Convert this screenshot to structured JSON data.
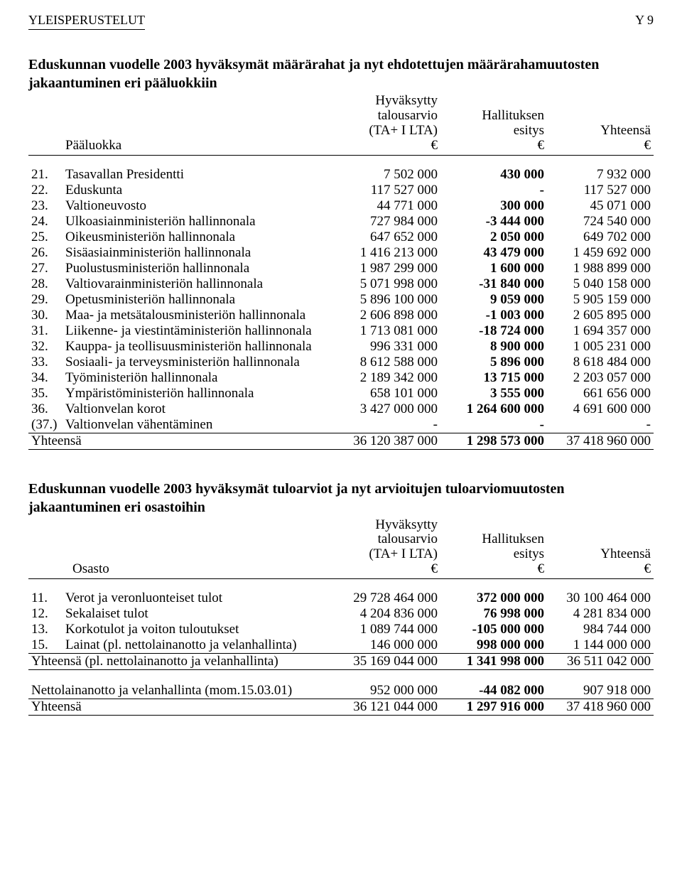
{
  "page": {
    "header_left": "YLEISPERUSTELUT",
    "header_right": "Y 9"
  },
  "table1": {
    "title": "Eduskunnan vuodelle 2003 hyväksymät määrärahat ja nyt ehdotettujen määrärahamuutosten jakaantuminen eri pääluokkiin",
    "row_label": "Pääluokka",
    "col_budget_l1": "Hyväksytty",
    "col_budget_l2": "talousarvio",
    "col_budget_l3": "(TA+ I LTA)",
    "col_budget_l4": "€",
    "col_gov_l1": "Hallituksen",
    "col_gov_l2": "esitys",
    "col_gov_l3": "€",
    "col_tot_l1": "Yhteensä",
    "col_tot_l2": "€",
    "rows": [
      {
        "no": "21.",
        "name": "Tasavallan Presidentti",
        "a": "7 502 000",
        "b": "430 000",
        "c": "7 932 000"
      },
      {
        "no": "22.",
        "name": "Eduskunta",
        "a": "117 527 000",
        "b": "-",
        "c": "117 527 000"
      },
      {
        "no": "23.",
        "name": "Valtioneuvosto",
        "a": "44 771 000",
        "b": "300 000",
        "c": "45 071 000"
      },
      {
        "no": "24.",
        "name": "Ulkoasiainministeriön hallinnonala",
        "a": "727 984 000",
        "b": "-3 444 000",
        "c": "724 540 000"
      },
      {
        "no": "25.",
        "name": "Oikeusministeriön hallinnonala",
        "a": "647 652 000",
        "b": "2 050 000",
        "c": "649 702 000"
      },
      {
        "no": "26.",
        "name": "Sisäasiainministeriön hallinnonala",
        "a": "1 416 213 000",
        "b": "43 479 000",
        "c": "1 459 692 000"
      },
      {
        "no": "27.",
        "name": "Puolustusministeriön hallinnonala",
        "a": "1 987 299 000",
        "b": "1 600 000",
        "c": "1 988 899 000"
      },
      {
        "no": "28.",
        "name": "Valtiovarainministeriön hallinnonala",
        "a": "5 071 998 000",
        "b": "-31 840 000",
        "c": "5 040 158 000"
      },
      {
        "no": "29.",
        "name": "Opetusministeriön hallinnonala",
        "a": "5 896 100 000",
        "b": "9 059 000",
        "c": "5 905 159 000"
      },
      {
        "no": "30.",
        "name": "Maa- ja metsätalousministeriön hallinnonala",
        "a": "2 606 898 000",
        "b": "-1 003 000",
        "c": "2 605 895 000"
      },
      {
        "no": "31.",
        "name": "Liikenne- ja viestintäministeriön hallinnonala",
        "a": "1 713 081 000",
        "b": "-18 724 000",
        "c": "1 694 357 000"
      },
      {
        "no": "32.",
        "name": "Kauppa- ja teollisuusministeriön hallinnonala",
        "a": "996 331 000",
        "b": "8 900 000",
        "c": "1 005 231 000"
      },
      {
        "no": "33.",
        "name": "Sosiaali- ja terveysministeriön hallinnonala",
        "a": "8 612 588 000",
        "b": "5 896 000",
        "c": "8 618 484 000"
      },
      {
        "no": "34.",
        "name": "Työministeriön hallinnonala",
        "a": "2 189 342 000",
        "b": "13 715 000",
        "c": "2 203 057 000"
      },
      {
        "no": "35.",
        "name": "Ympäristöministeriön hallinnonala",
        "a": "658 101 000",
        "b": "3 555 000",
        "c": "661 656 000"
      },
      {
        "no": "36.",
        "name": "Valtionvelan korot",
        "a": "3 427 000 000",
        "b": "1 264 600 000",
        "c": "4 691 600 000"
      },
      {
        "no": "(37.)",
        "name": "Valtionvelan vähentäminen",
        "a": "-",
        "b": "-",
        "c": "-"
      }
    ],
    "total": {
      "name": "Yhteensä",
      "a": "36 120 387 000",
      "b": "1 298 573 000",
      "c": "37 418 960 000"
    }
  },
  "table2": {
    "title": "Eduskunnan vuodelle 2003 hyväksymät tuloarviot ja nyt arvioitujen tuloarviomuutosten jakaantuminen eri osastoihin",
    "row_label": "Osasto",
    "col_budget_l1": "Hyväksytty",
    "col_budget_l2": "talousarvio",
    "col_budget_l3": "(TA+ I LTA)",
    "col_budget_l4": "€",
    "col_gov_l1": "Hallituksen",
    "col_gov_l2": "esitys",
    "col_gov_l3": "€",
    "col_tot_l1": "Yhteensä",
    "col_tot_l2": "€",
    "rows": [
      {
        "no": "11.",
        "name": "Verot ja veronluonteiset tulot",
        "a": "29 728 464 000",
        "b": "372 000 000",
        "c": "30 100 464 000"
      },
      {
        "no": "12.",
        "name": "Sekalaiset tulot",
        "a": "4 204 836 000",
        "b": "76 998 000",
        "c": "4 281 834 000"
      },
      {
        "no": "13.",
        "name": "Korkotulot ja voiton tuloutukset",
        "a": "1 089 744 000",
        "b": "-105 000 000",
        "c": "984 744 000"
      },
      {
        "no": "15.",
        "name": "Lainat (pl. nettolainanotto ja velanhallinta)",
        "a": "146 000 000",
        "b": "998 000 000",
        "c": "1 144 000 000"
      }
    ],
    "subtotal": {
      "name": "Yhteensä (pl. nettolainanotto ja velanhallinta)",
      "a": "35 169 044 000",
      "b": "1 341 998 000",
      "c": "36 511 042 000"
    },
    "netrow": {
      "name": "Nettolainanotto ja velanhallinta (mom.15.03.01)",
      "a": "952 000 000",
      "b": "-44 082 000",
      "c": "907 918 000"
    },
    "total": {
      "name": "Yhteensä",
      "a": "36 121 044 000",
      "b": "1 297 916 000",
      "c": "37 418 960 000"
    }
  }
}
